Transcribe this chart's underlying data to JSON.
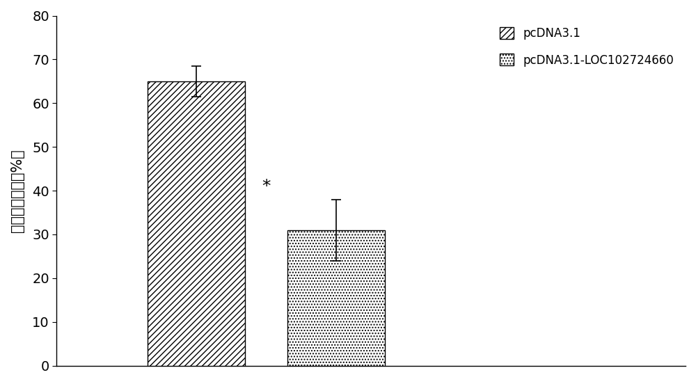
{
  "categories": [
    "pcDNA3.1",
    "pcDNA3.1-LOC102724660"
  ],
  "values": [
    65.0,
    31.0
  ],
  "errors_up": [
    3.5,
    7.0
  ],
  "errors_down": [
    3.5,
    7.0
  ],
  "ylabel": "细胞增殖速率（%）",
  "ylim": [
    0,
    80
  ],
  "yticks": [
    0,
    10,
    20,
    30,
    40,
    50,
    60,
    70,
    80
  ],
  "legend_labels": [
    "pcDNA3.1",
    "pcDNA3.1-LOC102724660"
  ],
  "bar_colors": [
    "white",
    "white"
  ],
  "background_color": "#ffffff",
  "significance_label": "*",
  "significance_bar_index": 1,
  "fig_width": 10.0,
  "fig_height": 5.52,
  "x_positions": [
    1,
    2
  ],
  "bar_width": 0.7,
  "xlim": [
    0,
    4.5
  ]
}
